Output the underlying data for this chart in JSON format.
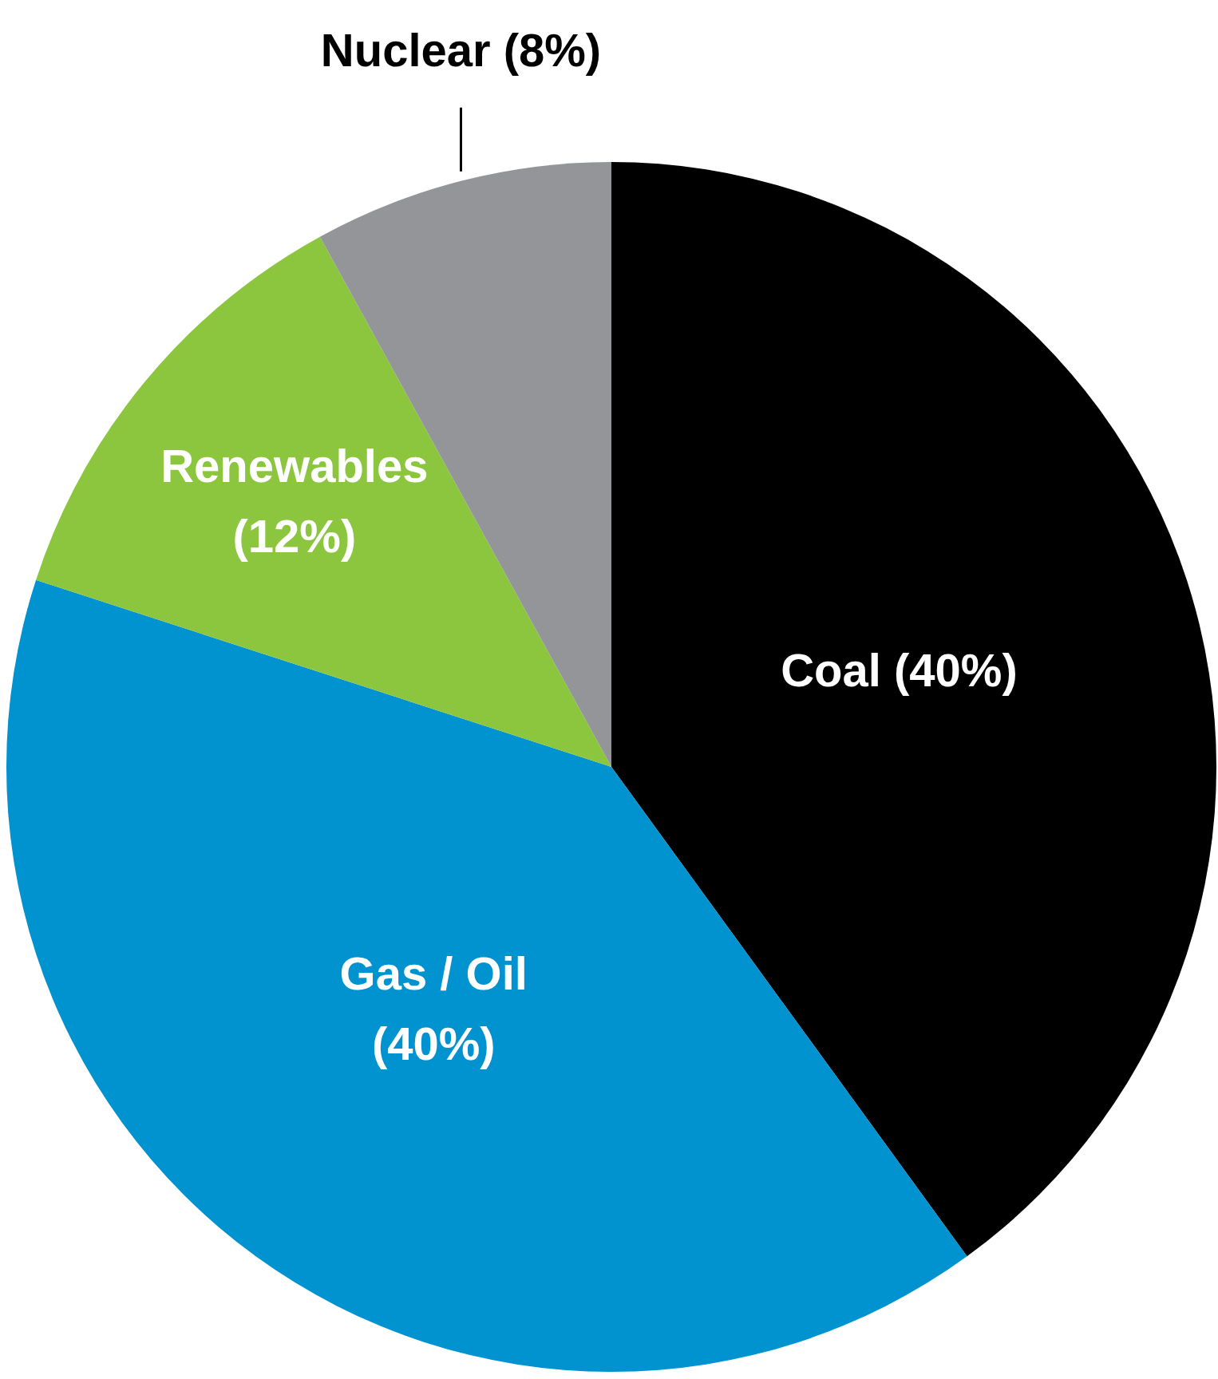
{
  "chart_data": {
    "type": "pie",
    "categories": [
      "Coal (40%)",
      "Gas / Oil (40%)",
      "Renewables (12%)",
      "Nuclear (8%)"
    ],
    "values": [
      40,
      40,
      12,
      8
    ],
    "colors": [
      "#000000",
      "#0193cf",
      "#8cc63f",
      "#939598"
    ],
    "legend": false
  }
}
